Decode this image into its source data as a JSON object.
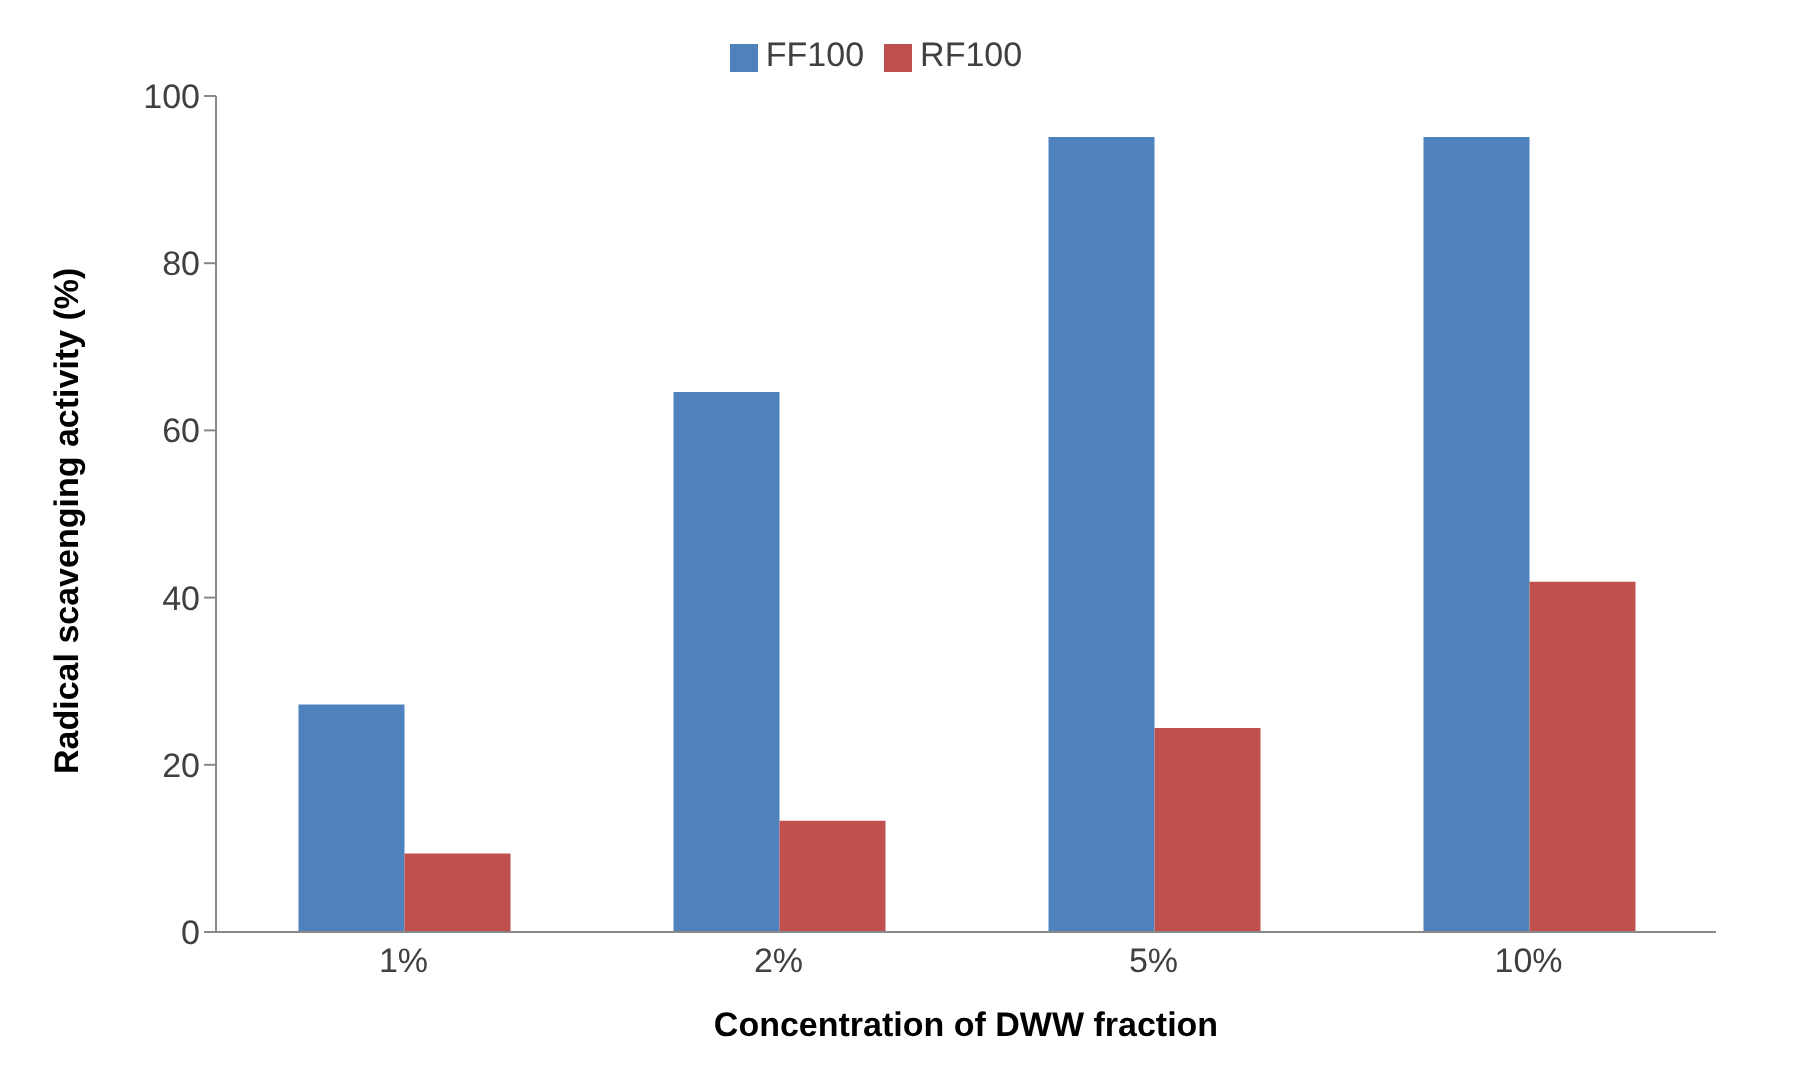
{
  "chart_data": {
    "type": "bar",
    "xlabel": "Concentration of DWW fraction",
    "ylabel": "Radical scavenging activity (%)",
    "categories": [
      "1%",
      "2%",
      "5%",
      "10%"
    ],
    "series": [
      {
        "name": "FF100",
        "color": "#4f81bd",
        "values": [
          27.2,
          64.6,
          95.1,
          95.1
        ]
      },
      {
        "name": "RF100",
        "color": "#c0504d",
        "values": [
          9.4,
          13.3,
          24.4,
          41.9
        ]
      }
    ],
    "ylim": [
      0,
      100
    ],
    "yticks": [
      0,
      20,
      40,
      60,
      80,
      100
    ],
    "grid": false,
    "legend": "top"
  }
}
